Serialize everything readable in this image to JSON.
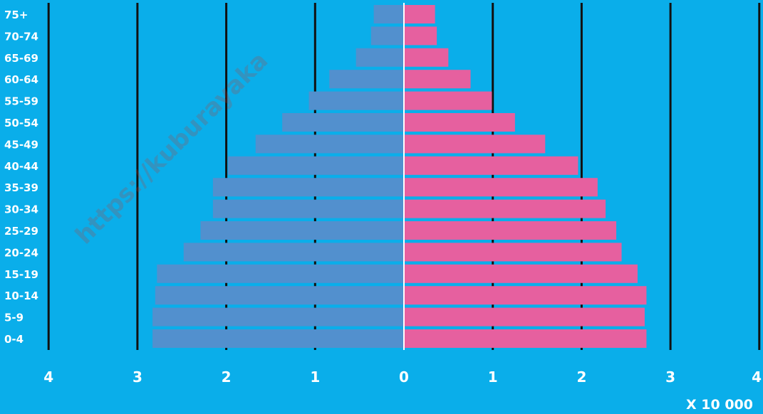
{
  "colors": {
    "background": "#0aaeea",
    "left_bars": "#5290ce",
    "right_bars": "#e6609f",
    "grid": "#111111",
    "text": "#ffffff",
    "center_line": "#ffffff"
  },
  "watermark": "https://kuburayaka",
  "chart_data": {
    "type": "bar",
    "orientation": "horizontal",
    "layout": "population-pyramid",
    "title": "",
    "categories": [
      "0-4",
      "5-9",
      "10-14",
      "15-19",
      "20-24",
      "25-29",
      "30-34",
      "35-39",
      "40-44",
      "45-49",
      "50-54",
      "55-59",
      "60-64",
      "65-69",
      "70-74",
      "75+"
    ],
    "series": [
      {
        "side": "left",
        "values": [
          2.83,
          2.83,
          2.8,
          2.78,
          2.48,
          2.29,
          2.15,
          2.15,
          1.98,
          1.67,
          1.37,
          1.07,
          0.84,
          0.54,
          0.37,
          0.34
        ]
      },
      {
        "side": "right",
        "values": [
          2.73,
          2.71,
          2.73,
          2.63,
          2.45,
          2.39,
          2.27,
          2.18,
          1.96,
          1.59,
          1.25,
          0.99,
          0.75,
          0.5,
          0.37,
          0.35
        ]
      }
    ],
    "xlim": [
      -4,
      4
    ],
    "x_tick_values": [
      -4,
      -3,
      -2,
      -1,
      0,
      1,
      2,
      3,
      4
    ],
    "x_tick_labels": [
      "4",
      "3",
      "2",
      "1",
      "0",
      "1",
      "2",
      "3",
      "4"
    ],
    "x_unit_label": "X 10 000",
    "grid": true
  }
}
